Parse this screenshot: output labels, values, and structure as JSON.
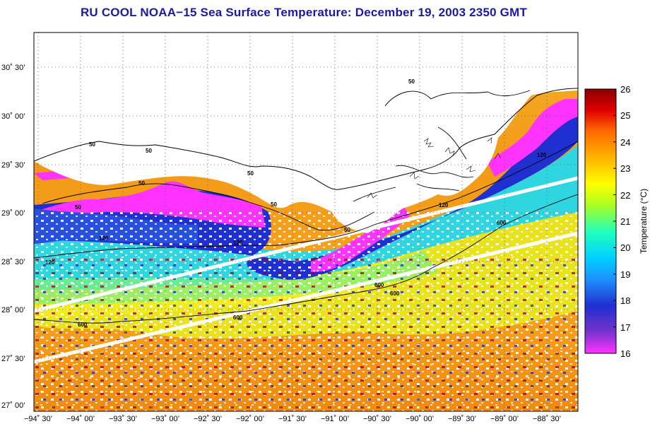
{
  "title": "RU COOL  NOAA−15  Sea Surface Temperature:  December 19, 2003 2350 GMT",
  "lat_labels": [
    "30˚ 30’",
    "30˚ 00’",
    "29˚ 30’",
    "29˚ 00’",
    "28˚ 30’",
    "28˚ 00’",
    "27˚ 30’",
    "27˚ 00’"
  ],
  "lon_labels": [
    "−94˚ 30’",
    "−94˚ 00’",
    "−93˚ 30’",
    "−93˚ 00’",
    "−92˚ 30’",
    "−92˚ 00’",
    "−91˚ 30’",
    "−91˚ 00’",
    "−90˚ 30’",
    "−90˚ 00’",
    "−89˚ 30’",
    "−89˚ 00’",
    "−88˚ 30’"
  ],
  "contour_labels": [
    "50",
    "50",
    "50",
    "50",
    "50",
    "50",
    "50",
    "50",
    "120",
    "120",
    "120",
    "120",
    "120",
    "600",
    "600",
    "600",
    "600",
    "600"
  ],
  "colorbar": {
    "title": "Temperature (°C)",
    "min": 16,
    "max": 26,
    "labels": [
      "26",
      "25",
      "24",
      "23",
      "22",
      "21",
      "20",
      "19",
      "18",
      "17",
      "16"
    ],
    "colors": [
      "#ff33ff",
      "#7733cc",
      "#1f2fd0",
      "#1e90ff",
      "#00d0ff",
      "#22ffbb",
      "#aaff22",
      "#ffff00",
      "#ffb300",
      "#ff6a00",
      "#e00000",
      "#8a0000"
    ]
  },
  "colors": {
    "title": "#1a1aa6",
    "land": "#ffffff",
    "warm_water": "#f2a11c",
    "cool_shelf": "#1f2fd0",
    "coldest_shelf": "#ff33ff",
    "cloud_gap": "#ffffff"
  }
}
